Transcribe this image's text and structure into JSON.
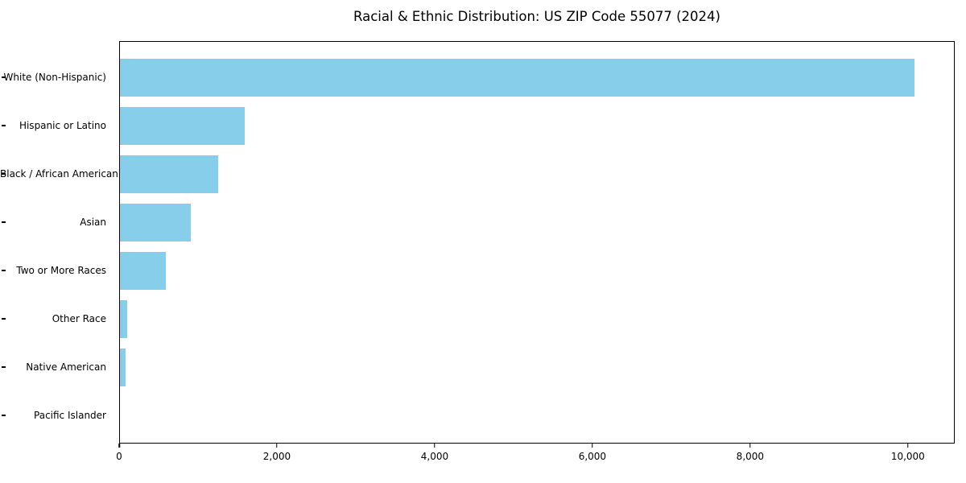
{
  "chart_data": {
    "type": "bar",
    "orientation": "horizontal",
    "title": "Racial & Ethnic Distribution: US ZIP Code 55077 (2024)",
    "categories": [
      "White (Non-Hispanic)",
      "Hispanic or Latino",
      "Black / African American",
      "Asian",
      "Two or More Races",
      "Other Race",
      "Native American",
      "Pacific Islander"
    ],
    "values": [
      10060,
      1580,
      1240,
      900,
      580,
      90,
      75,
      0
    ],
    "xlabel": "",
    "ylabel": "",
    "xlim": [
      0,
      10563
    ],
    "xticks": [
      0,
      2000,
      4000,
      6000,
      8000,
      10000
    ],
    "xtick_labels": [
      "0",
      "2,000",
      "4,000",
      "6,000",
      "8,000",
      "10,000"
    ],
    "bar_color": "#87CEEB",
    "spine_color": "#000000",
    "text_color": "#000000",
    "background_color": "#ffffff",
    "grid": false,
    "legend": "none"
  }
}
